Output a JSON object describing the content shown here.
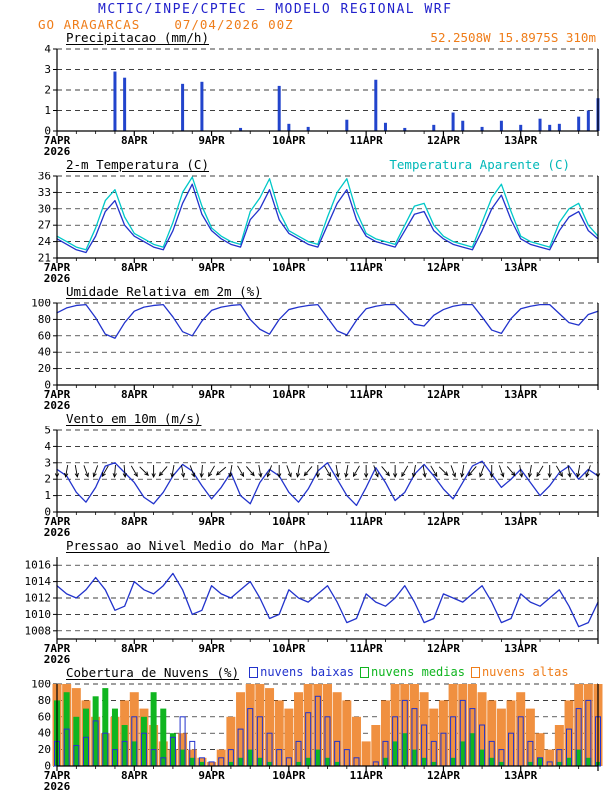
{
  "header": {
    "line1": "MCTIC/INPE/CPTEC — MODELO REGIONAL WRF",
    "station": "GO ARAGARCAS",
    "datetime": "07/04/2026 00Z",
    "coords": "52.2508W 15.8975S 310m"
  },
  "colors": {
    "header_blue": "#2222cc",
    "orange": "#ef7d1a",
    "line_blue": "#2233cc",
    "cyan": "#00b8b8",
    "green": "#10b520",
    "precip_bar_blue": "#2244cc",
    "cloud_high_orange": "#f09040",
    "cloud_mid_green": "#10b520",
    "cloud_low_blue": "#2233cc",
    "axis_black": "#000000"
  },
  "xaxis": {
    "hours": 168,
    "step": 3,
    "day_labels": [
      "7APR",
      "8APR",
      "9APR",
      "10APR",
      "11APR",
      "12APR",
      "13APR"
    ],
    "year": "2026"
  },
  "chart_data": [
    {
      "type": "bar",
      "title": "Precipitacao (mm/h)",
      "ylim": [
        0,
        4
      ],
      "yticks": [
        0,
        1,
        2,
        3,
        4
      ],
      "series": [
        {
          "name": "precipitacao",
          "color": "#2244cc",
          "values": [
            0,
            0,
            0,
            0,
            0,
            0,
            2.9,
            2.6,
            0,
            0,
            0,
            0,
            0,
            2.3,
            0,
            2.4,
            0,
            0,
            0,
            0.15,
            0,
            0,
            0,
            2.2,
            0.35,
            0,
            0.2,
            0,
            0,
            0,
            0.55,
            0,
            0,
            2.5,
            0.4,
            0,
            0.15,
            0,
            0,
            0.3,
            0,
            0.9,
            0.5,
            0,
            0.2,
            0,
            0.5,
            0,
            0.3,
            0,
            0.6,
            0.3,
            0.35,
            0,
            0.7,
            1.0,
            1.6
          ]
        }
      ]
    },
    {
      "type": "line",
      "title": "2-m Temperatura (C)",
      "legend_right": "Temperatura Aparente (C)",
      "ylim": [
        21,
        36
      ],
      "yticks": [
        21,
        24,
        27,
        30,
        33,
        36
      ],
      "series": [
        {
          "name": "temperatura aparente",
          "color": "#00c8c8",
          "values": [
            25,
            24,
            23,
            22.5,
            26.5,
            31.5,
            33.5,
            28.5,
            25.5,
            24.5,
            23.5,
            23,
            27.5,
            33,
            35.8,
            30.5,
            26.5,
            25,
            24,
            23.5,
            29.5,
            32,
            35.5,
            29.5,
            26,
            25,
            24,
            23.5,
            28.5,
            33,
            35.5,
            29.5,
            25.5,
            24.5,
            24,
            23.5,
            27,
            30.5,
            31,
            27,
            25,
            24,
            23.5,
            23,
            27.5,
            32,
            34.5,
            29.5,
            25,
            24,
            23.5,
            23,
            27.5,
            30,
            31,
            27,
            25
          ]
        },
        {
          "name": "temperatura 2m",
          "color": "#2233cc",
          "values": [
            24.5,
            23.5,
            22.5,
            22,
            25,
            29.5,
            31.5,
            27,
            25,
            24,
            23,
            22.5,
            26,
            31,
            34.5,
            29,
            26,
            24.5,
            23.5,
            23,
            28,
            30,
            33.5,
            28,
            25.5,
            24.5,
            23.5,
            23,
            27,
            31,
            33.5,
            28,
            25,
            24,
            23.5,
            23,
            26,
            29,
            29.5,
            26,
            24.5,
            23.5,
            23,
            22.5,
            26,
            30,
            32.5,
            28,
            24.5,
            23.5,
            23,
            22.5,
            26,
            28.5,
            29.5,
            26,
            24.5
          ]
        }
      ]
    },
    {
      "type": "line",
      "title": "Umidade Relativa em 2m (%)",
      "ylim": [
        0,
        100
      ],
      "yticks": [
        0,
        20,
        40,
        60,
        80,
        100
      ],
      "series": [
        {
          "name": "umidade relativa",
          "color": "#2233cc",
          "values": [
            88,
            94,
            97,
            98,
            82,
            62,
            57,
            76,
            90,
            95,
            97,
            98,
            83,
            65,
            60,
            78,
            91,
            95,
            97,
            98,
            80,
            68,
            62,
            80,
            92,
            95,
            97,
            98,
            82,
            66,
            61,
            79,
            93,
            96,
            98,
            98,
            86,
            74,
            72,
            85,
            92,
            96,
            98,
            98,
            83,
            67,
            63,
            81,
            93,
            96,
            98,
            98,
            87,
            76,
            73,
            86,
            90
          ]
        }
      ]
    },
    {
      "type": "line",
      "title": "Vento em 10m (m/s)",
      "ylim": [
        0,
        5
      ],
      "yticks": [
        0,
        1,
        2,
        3,
        4,
        5
      ],
      "series": [
        {
          "name": "velocidade do vento",
          "color": "#2233cc",
          "values": [
            2.6,
            2.2,
            1.2,
            0.6,
            1.5,
            2.8,
            3.0,
            2.4,
            1.8,
            0.9,
            0.5,
            1.2,
            2.2,
            2.9,
            2.5,
            1.6,
            0.8,
            1.5,
            2.4,
            1.0,
            0.5,
            1.8,
            2.6,
            2.2,
            1.2,
            0.6,
            1.4,
            2.5,
            3.0,
            2.0,
            1.0,
            0.4,
            1.5,
            2.7,
            1.8,
            0.7,
            1.2,
            2.3,
            2.9,
            2.2,
            1.4,
            0.8,
            1.8,
            2.8,
            3.1,
            2.3,
            1.5,
            2.0,
            2.6,
            1.8,
            1.0,
            1.6,
            2.4,
            2.8,
            2.0,
            2.6,
            2.2
          ]
        }
      ],
      "barbs": {
        "y": 2.5,
        "color": "#000000",
        "directions": [
          90,
          100,
          80,
          70,
          110,
          120,
          95,
          85,
          60,
          45,
          90,
          130,
          100,
          80,
          70,
          95,
          120,
          140,
          100,
          60,
          50,
          80,
          110,
          90,
          70,
          100,
          130,
          90,
          60,
          80,
          100,
          120,
          90,
          70,
          50,
          90,
          120,
          100,
          80,
          60,
          45,
          70,
          100,
          130,
          110,
          90,
          70,
          50,
          80,
          100,
          120,
          90,
          60,
          80,
          100,
          110,
          90
        ]
      }
    },
    {
      "type": "line",
      "title": "Pressao ao Nivel Medio do Mar (hPa)",
      "ylim": [
        1007,
        1017
      ],
      "yticks": [
        1008,
        1010,
        1012,
        1014,
        1016
      ],
      "series": [
        {
          "name": "pressao nivel do mar",
          "color": "#2233cc",
          "values": [
            1013.5,
            1012.5,
            1012,
            1013,
            1014.5,
            1013,
            1010.5,
            1011,
            1014,
            1013,
            1012.5,
            1013.5,
            1015,
            1013,
            1010,
            1010.5,
            1013.5,
            1012.5,
            1012,
            1013,
            1014,
            1012,
            1009.5,
            1010,
            1013,
            1012,
            1011.5,
            1012.5,
            1013.5,
            1011.5,
            1009,
            1009.5,
            1012.5,
            1011.5,
            1011,
            1012,
            1013.5,
            1011.5,
            1009,
            1009.5,
            1012.5,
            1012,
            1011.5,
            1012.5,
            1013.5,
            1011.5,
            1009,
            1009.5,
            1012.5,
            1011.5,
            1011,
            1012,
            1013,
            1011,
            1008.5,
            1009,
            1011.5
          ]
        }
      ]
    },
    {
      "type": "groupbar",
      "title": "Cobertura de Nuvens (%)",
      "ylim": [
        0,
        100
      ],
      "yticks": [
        0,
        20,
        40,
        60,
        80,
        100
      ],
      "legend": [
        {
          "label": "nuvens baixas",
          "color": "#2233cc"
        },
        {
          "label": "nuvens medias",
          "color": "#10b520"
        },
        {
          "label": "nuvens altas",
          "color": "#ef7d1a"
        }
      ],
      "series": [
        {
          "name": "nuvens altas",
          "color": "#f09040",
          "style": "fill",
          "width": 9,
          "values": [
            100,
            100,
            95,
            80,
            60,
            40,
            60,
            80,
            90,
            70,
            50,
            30,
            20,
            40,
            20,
            10,
            5,
            20,
            60,
            90,
            100,
            100,
            95,
            80,
            70,
            90,
            100,
            100,
            100,
            90,
            80,
            60,
            30,
            50,
            80,
            100,
            100,
            100,
            90,
            70,
            80,
            100,
            100,
            100,
            90,
            80,
            70,
            80,
            90,
            70,
            40,
            20,
            50,
            80,
            100,
            100,
            100
          ]
        },
        {
          "name": "nuvens medias",
          "color": "#10b520",
          "style": "fill",
          "width": 6,
          "values": [
            80,
            90,
            60,
            70,
            85,
            95,
            70,
            50,
            30,
            60,
            90,
            70,
            40,
            20,
            10,
            5,
            0,
            0,
            5,
            10,
            20,
            10,
            5,
            0,
            0,
            5,
            10,
            20,
            10,
            5,
            0,
            0,
            0,
            0,
            10,
            30,
            40,
            20,
            10,
            5,
            0,
            10,
            30,
            40,
            20,
            10,
            5,
            0,
            0,
            5,
            10,
            0,
            5,
            10,
            20,
            10,
            5
          ]
        },
        {
          "name": "nuvens baixas",
          "color": "#2233cc",
          "style": "outline",
          "width": 5,
          "values": [
            30,
            45,
            25,
            35,
            55,
            40,
            20,
            30,
            60,
            40,
            20,
            10,
            35,
            60,
            30,
            10,
            5,
            10,
            20,
            45,
            70,
            60,
            40,
            20,
            10,
            30,
            65,
            85,
            60,
            30,
            20,
            10,
            0,
            5,
            30,
            60,
            80,
            70,
            50,
            30,
            40,
            60,
            80,
            70,
            50,
            30,
            20,
            40,
            60,
            30,
            10,
            5,
            20,
            45,
            70,
            80,
            60
          ]
        }
      ]
    }
  ]
}
